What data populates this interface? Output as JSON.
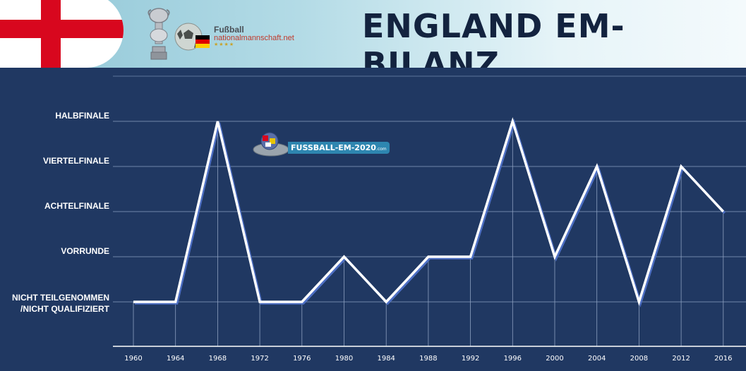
{
  "header": {
    "title": "ENGLAND EM-BILANZ",
    "site_line1": "Fußball",
    "site_line2": "nationalmannschaft.net",
    "site_line3": "★★★★"
  },
  "watermark": {
    "text": "FUSSBALL-EM-2020",
    "sub": ".com"
  },
  "colors": {
    "background": "#203862",
    "line": "#ffffff",
    "flag_red": "#d8071e",
    "title": "#13233f"
  },
  "chart_data": {
    "type": "line",
    "title": "ENGLAND EM-BILANZ",
    "xlabel": "",
    "ylabel": "",
    "x": [
      "1960",
      "1964",
      "1968",
      "1972",
      "1976",
      "1980",
      "1984",
      "1988",
      "1992",
      "1996",
      "2000",
      "2004",
      "2008",
      "2012",
      "2016"
    ],
    "y_levels": [
      "NICHT TEILGENOMMEN /NICHT QUALIFIZIERT",
      "VORRUNDE",
      "ACHTELFINALE",
      "VIERTELFINALE",
      "HALBFINALE"
    ],
    "y_levels_display": [
      [
        "NICHT TEILGENOMMEN",
        "/NICHT QUALIFIZIERT"
      ],
      [
        "VORRUNDE"
      ],
      [
        "ACHTELFINALE"
      ],
      [
        "VIERTELFINALE"
      ],
      [
        "HALBFINALE"
      ]
    ],
    "series": [
      {
        "values": [
          0,
          0,
          4,
          0,
          0,
          1,
          0,
          1,
          1,
          4,
          1,
          3,
          0,
          3,
          2
        ]
      }
    ],
    "ylim": [
      0,
      4
    ],
    "grid": true,
    "legend": "none"
  }
}
